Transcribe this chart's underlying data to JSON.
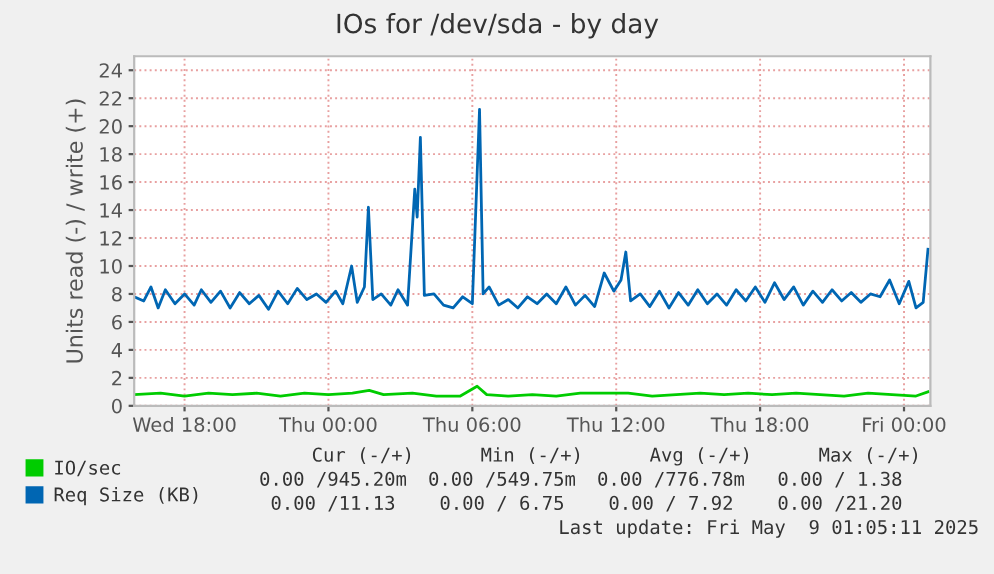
{
  "chart_data": {
    "type": "line",
    "title": "IOs for /dev/sda - by day",
    "ylabel": "Units read (-) / write (+)",
    "xlim": [
      "2025-05-07T15:54",
      "2025-05-09T01:06"
    ],
    "ylim": [
      0,
      25
    ],
    "xticks": [
      {
        "value": "2025-05-07T18:00",
        "label": "Wed 18:00"
      },
      {
        "value": "2025-05-08T00:00",
        "label": "Thu 00:00"
      },
      {
        "value": "2025-05-08T06:00",
        "label": "Thu 06:00"
      },
      {
        "value": "2025-05-08T12:00",
        "label": "Thu 12:00"
      },
      {
        "value": "2025-05-08T18:00",
        "label": "Thu 18:00"
      },
      {
        "value": "2025-05-09T00:00",
        "label": "Fri 00:00"
      }
    ],
    "yticks": [
      0,
      2,
      4,
      6,
      8,
      10,
      12,
      14,
      16,
      18,
      20,
      22,
      24
    ],
    "grid": true,
    "legend": "bottom left",
    "series": [
      {
        "name": "IO/sec",
        "color": "#00cc00",
        "x": [
          "2025-05-07T15:54",
          "2025-05-07T17:00",
          "2025-05-07T18:00",
          "2025-05-07T19:00",
          "2025-05-07T20:00",
          "2025-05-07T21:00",
          "2025-05-07T22:00",
          "2025-05-07T23:00",
          "2025-05-08T00:00",
          "2025-05-08T01:00",
          "2025-05-08T01:42",
          "2025-05-08T02:18",
          "2025-05-08T03:30",
          "2025-05-08T04:30",
          "2025-05-08T05:30",
          "2025-05-08T06:12",
          "2025-05-08T06:36",
          "2025-05-08T07:30",
          "2025-05-08T08:30",
          "2025-05-08T09:30",
          "2025-05-08T10:30",
          "2025-05-08T11:30",
          "2025-05-08T12:30",
          "2025-05-08T13:30",
          "2025-05-08T14:30",
          "2025-05-08T15:30",
          "2025-05-08T16:30",
          "2025-05-08T17:30",
          "2025-05-08T18:30",
          "2025-05-08T19:30",
          "2025-05-08T20:30",
          "2025-05-08T21:30",
          "2025-05-08T22:30",
          "2025-05-08T23:30",
          "2025-05-09T00:30",
          "2025-05-09T01:00"
        ],
        "values": [
          0.8,
          0.9,
          0.7,
          0.9,
          0.8,
          0.9,
          0.7,
          0.9,
          0.8,
          0.9,
          1.1,
          0.8,
          0.9,
          0.7,
          0.7,
          1.4,
          0.8,
          0.7,
          0.8,
          0.7,
          0.9,
          0.9,
          0.9,
          0.7,
          0.8,
          0.9,
          0.8,
          0.9,
          0.8,
          0.9,
          0.8,
          0.7,
          0.9,
          0.8,
          0.7,
          1.0
        ]
      },
      {
        "name": "Req Size (KB)",
        "color": "#0066b3",
        "x": [
          "2025-05-07T15:54",
          "2025-05-07T16:18",
          "2025-05-07T16:36",
          "2025-05-07T16:54",
          "2025-05-07T17:12",
          "2025-05-07T17:36",
          "2025-05-07T18:00",
          "2025-05-07T18:24",
          "2025-05-07T18:42",
          "2025-05-07T19:06",
          "2025-05-07T19:30",
          "2025-05-07T19:54",
          "2025-05-07T20:18",
          "2025-05-07T20:42",
          "2025-05-07T21:06",
          "2025-05-07T21:30",
          "2025-05-07T21:54",
          "2025-05-07T22:18",
          "2025-05-07T22:42",
          "2025-05-07T23:06",
          "2025-05-07T23:30",
          "2025-05-07T23:54",
          "2025-05-08T00:18",
          "2025-05-08T00:36",
          "2025-05-08T00:58",
          "2025-05-08T01:12",
          "2025-05-08T01:30",
          "2025-05-08T01:40",
          "2025-05-08T01:51",
          "2025-05-08T02:12",
          "2025-05-08T02:36",
          "2025-05-08T02:54",
          "2025-05-08T03:18",
          "2025-05-08T03:36",
          "2025-05-08T03:42",
          "2025-05-08T03:50",
          "2025-05-08T04:00",
          "2025-05-08T04:24",
          "2025-05-08T04:48",
          "2025-05-08T05:12",
          "2025-05-08T05:36",
          "2025-05-08T06:00",
          "2025-05-08T06:18",
          "2025-05-08T06:27",
          "2025-05-08T06:42",
          "2025-05-08T07:06",
          "2025-05-08T07:30",
          "2025-05-08T07:54",
          "2025-05-08T08:18",
          "2025-05-08T08:42",
          "2025-05-08T09:06",
          "2025-05-08T09:30",
          "2025-05-08T09:54",
          "2025-05-08T10:18",
          "2025-05-08T10:42",
          "2025-05-08T11:06",
          "2025-05-08T11:30",
          "2025-05-08T11:54",
          "2025-05-08T12:12",
          "2025-05-08T12:24",
          "2025-05-08T12:36",
          "2025-05-08T13:00",
          "2025-05-08T13:24",
          "2025-05-08T13:48",
          "2025-05-08T14:12",
          "2025-05-08T14:36",
          "2025-05-08T15:00",
          "2025-05-08T15:24",
          "2025-05-08T15:48",
          "2025-05-08T16:12",
          "2025-05-08T16:36",
          "2025-05-08T17:00",
          "2025-05-08T17:24",
          "2025-05-08T17:48",
          "2025-05-08T18:12",
          "2025-05-08T18:36",
          "2025-05-08T19:00",
          "2025-05-08T19:24",
          "2025-05-08T19:48",
          "2025-05-08T20:12",
          "2025-05-08T20:36",
          "2025-05-08T21:00",
          "2025-05-08T21:24",
          "2025-05-08T21:48",
          "2025-05-08T22:12",
          "2025-05-08T22:36",
          "2025-05-08T23:00",
          "2025-05-08T23:24",
          "2025-05-08T23:48",
          "2025-05-09T00:12",
          "2025-05-09T00:30",
          "2025-05-09T00:48",
          "2025-05-09T01:00"
        ],
        "values": [
          7.8,
          7.5,
          8.5,
          7.0,
          8.3,
          7.3,
          8.0,
          7.2,
          8.3,
          7.4,
          8.2,
          7.0,
          8.1,
          7.3,
          7.9,
          6.9,
          8.2,
          7.3,
          8.4,
          7.6,
          8.0,
          7.4,
          8.2,
          7.3,
          10.0,
          7.4,
          8.5,
          14.2,
          7.6,
          8.0,
          7.2,
          8.3,
          7.2,
          15.5,
          13.5,
          19.2,
          7.9,
          8.0,
          7.2,
          7.0,
          7.8,
          7.3,
          21.2,
          8.0,
          8.5,
          7.2,
          7.6,
          7.0,
          7.8,
          7.3,
          8.0,
          7.3,
          8.5,
          7.2,
          7.9,
          7.1,
          9.5,
          8.2,
          9.0,
          11.0,
          7.5,
          8.0,
          7.1,
          8.2,
          7.0,
          8.1,
          7.2,
          8.3,
          7.3,
          8.0,
          7.2,
          8.3,
          7.5,
          8.5,
          7.4,
          8.8,
          7.6,
          8.5,
          7.2,
          8.2,
          7.4,
          8.3,
          7.5,
          8.1,
          7.4,
          8.0,
          7.8,
          9.0,
          7.3,
          8.9,
          7.0,
          7.4,
          11.2
        ]
      }
    ],
    "annotations": [
      "Cur (-/+)",
      "Min (-/+)",
      "Avg (-/+)",
      "Max (-/+)",
      "0.00 /945.20m",
      "0.00 /549.75m",
      "0.00 /776.78m",
      "0.00 / 1.38",
      "0.00 /11.13",
      "0.00 / 6.75",
      "0.00 / 7.92",
      "0.00 /21.20",
      "Last update: Fri May  9 01:05:11 2025"
    ]
  }
}
